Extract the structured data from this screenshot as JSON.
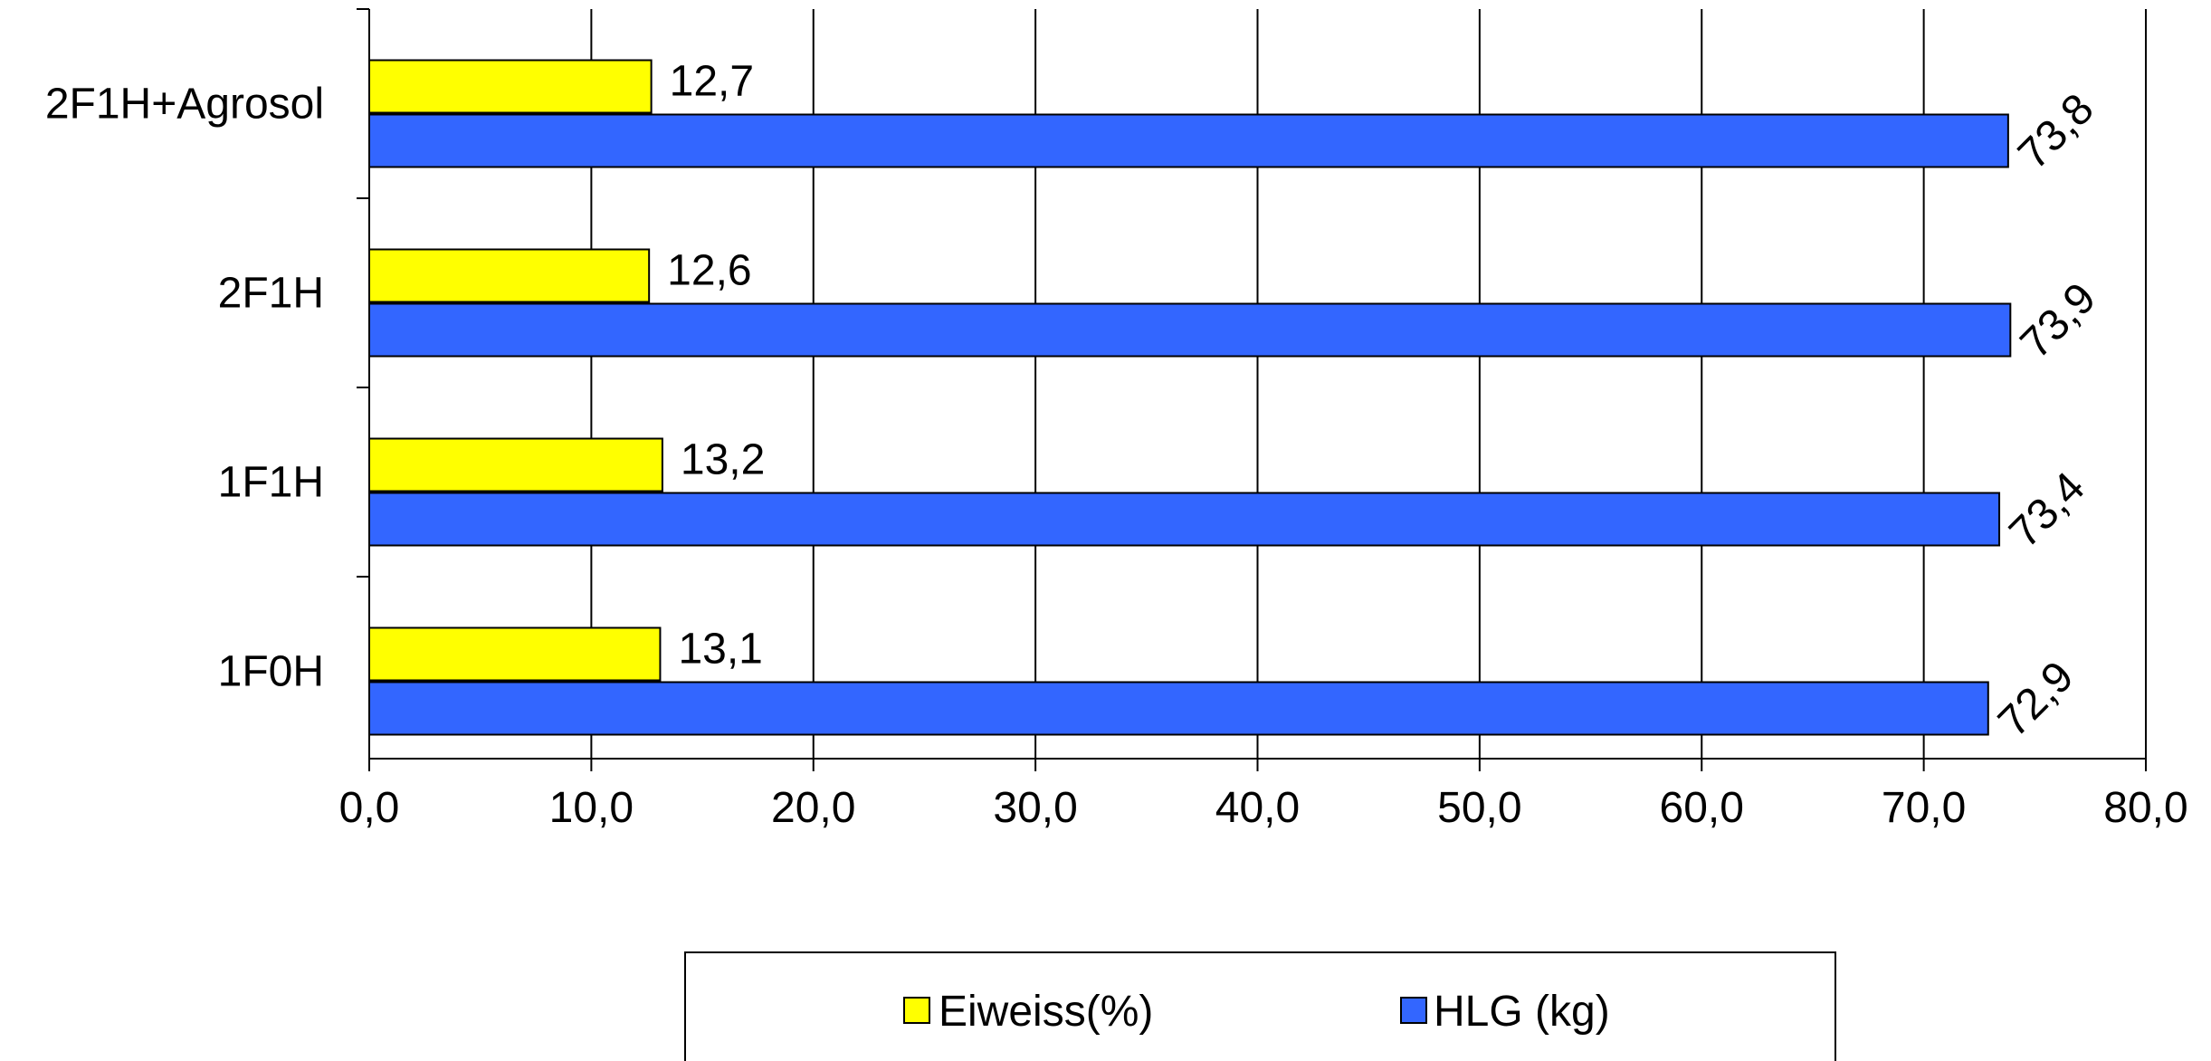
{
  "chart_data": {
    "type": "bar",
    "orientation": "horizontal",
    "categories": [
      "2F1H+Agrosol",
      "2F1H",
      "1F1H",
      "1F0H"
    ],
    "series": [
      {
        "name": "Eiweiss(%)",
        "color": "#ffff00",
        "values": [
          12.7,
          12.6,
          13.2,
          13.1
        ],
        "labels": [
          "12,7",
          "12,6",
          "13,2",
          "13,1"
        ]
      },
      {
        "name": "HLG (kg)",
        "color": "#3366ff",
        "values": [
          73.8,
          73.9,
          73.4,
          72.9
        ],
        "labels": [
          "73,8",
          "73,9",
          "73,4",
          "72,9"
        ]
      }
    ],
    "xlim": [
      0,
      80
    ],
    "xticks": [
      0,
      10,
      20,
      30,
      40,
      50,
      60,
      70,
      80
    ],
    "xtick_labels": [
      "0,0",
      "10,0",
      "20,0",
      "30,0",
      "40,0",
      "50,0",
      "60,0",
      "70,0",
      "80,0"
    ],
    "grid": true,
    "legend_position": "bottom",
    "title": "",
    "xlabel": "",
    "ylabel": ""
  }
}
